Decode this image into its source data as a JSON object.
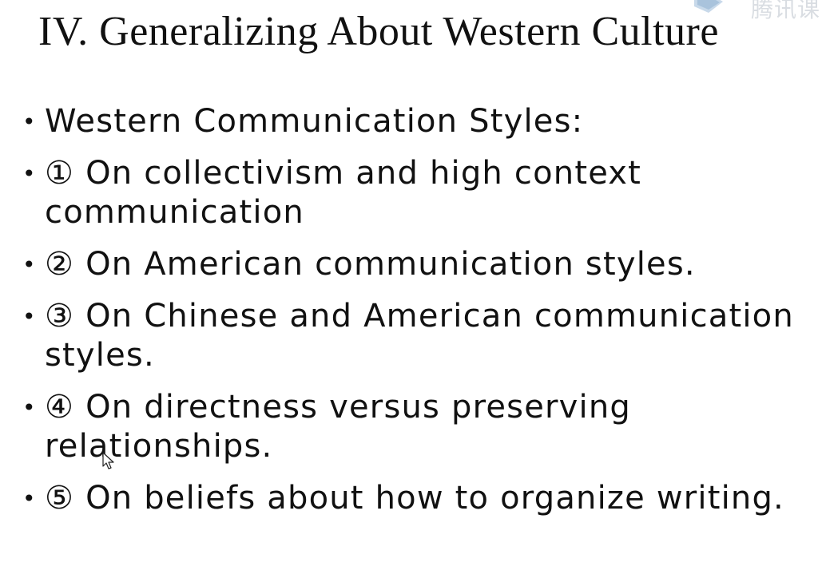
{
  "title": "IV. Generalizing About Western Culture",
  "watermark": {
    "text": "腾讯课",
    "icon": "tencent-class-logo-icon"
  },
  "bullets": [
    {
      "marker": "",
      "text": "Western Communication Styles:"
    },
    {
      "marker": "①",
      "text": "On collectivism and high context communication"
    },
    {
      "marker": "②",
      "text": "On American communication styles."
    },
    {
      "marker": "③",
      "text": "On Chinese and American communication styles."
    },
    {
      "marker": "④",
      "text": "On directness versus preserving relationships."
    },
    {
      "marker": " ⑤",
      "text": "On beliefs about how to organize writing."
    }
  ],
  "bullet_symbol": "•",
  "cursor_icon": "mouse-pointer-icon"
}
